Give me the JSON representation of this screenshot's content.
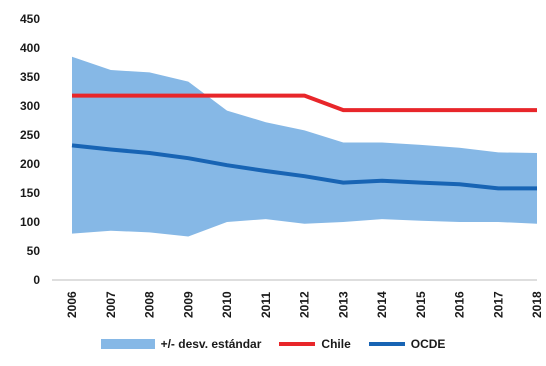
{
  "chart_data": {
    "type": "line",
    "categories": [
      "2006",
      "2007",
      "2008",
      "2009",
      "2010",
      "2011",
      "2012",
      "2013",
      "2014",
      "2015",
      "2016",
      "2017",
      "2018"
    ],
    "ylim": [
      0,
      450
    ],
    "yticks": [
      "0",
      "50",
      "100",
      "150",
      "200",
      "250",
      "300",
      "350",
      "400",
      "450"
    ],
    "series": [
      {
        "name": "+/- desv. estándar",
        "kind": "band",
        "color": "#86b8e6",
        "upper": [
          385,
          362,
          358,
          342,
          292,
          272,
          258,
          237,
          237,
          233,
          228,
          220,
          219
        ],
        "lower": [
          80,
          85,
          82,
          75,
          100,
          105,
          97,
          100,
          105,
          102,
          100,
          100,
          97
        ]
      },
      {
        "name": "Chile",
        "kind": "line",
        "color": "#e8262a",
        "values": [
          318,
          318,
          318,
          318,
          318,
          318,
          318,
          293,
          293,
          293,
          293,
          293,
          293
        ]
      },
      {
        "name": "OCDE",
        "kind": "line",
        "color": "#1864b4",
        "values": [
          232,
          225,
          219,
          210,
          198,
          188,
          179,
          168,
          171,
          168,
          165,
          158,
          158
        ]
      }
    ],
    "grid": false,
    "legend_position": "bottom"
  }
}
